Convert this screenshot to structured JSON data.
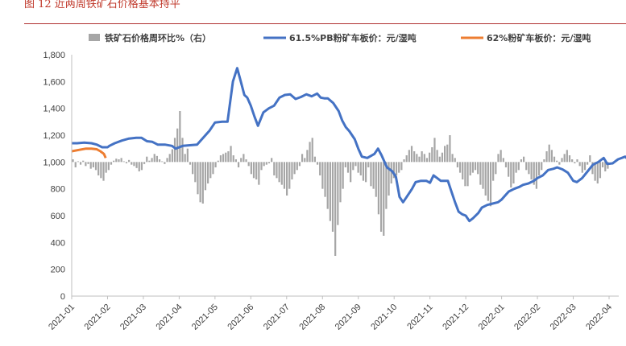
{
  "figure_title": "图 12 近两周铁矿石价格基本持平",
  "chart_data": {
    "type": "bar+line",
    "xlabels": [
      "2021-01",
      "2021-02",
      "2021-03",
      "2021-04",
      "2021-05",
      "2021-06",
      "2021-07",
      "2021-08",
      "2021-09",
      "2021-10",
      "2021-11",
      "2021-12",
      "2022-01",
      "2022-02",
      "2022-03",
      "2022-04"
    ],
    "ylim": [
      0,
      1800
    ],
    "yticks": [
      0,
      200,
      400,
      600,
      800,
      1000,
      1200,
      1400,
      1600,
      1800
    ],
    "y2_baseline_value": 1000,
    "legend": [
      {
        "key": "bars",
        "label": "铁矿石价格周环比%（右）",
        "color": "#a6a6a6",
        "kind": "bar"
      },
      {
        "key": "pb",
        "label": "61.5%PB粉矿车板价：元/湿吨",
        "color": "#4472c4",
        "kind": "line"
      },
      {
        "key": "f62",
        "label": "62%粉矿车板价：元/湿吨",
        "color": "#ed7d31",
        "kind": "line"
      }
    ],
    "series": [
      {
        "name": "61.5%PB粉矿车板价：元/湿吨",
        "color": "#4472c4",
        "points": [
          [
            0,
            1140
          ],
          [
            0.15,
            1140
          ],
          [
            0.35,
            1145
          ],
          [
            0.55,
            1140
          ],
          [
            0.7,
            1130
          ],
          [
            0.85,
            1110
          ],
          [
            1.0,
            1110
          ],
          [
            1.05,
            1120
          ],
          [
            1.2,
            1140
          ],
          [
            1.4,
            1160
          ],
          [
            1.6,
            1175
          ],
          [
            1.8,
            1180
          ],
          [
            1.95,
            1180
          ],
          [
            2.1,
            1155
          ],
          [
            2.25,
            1150
          ],
          [
            2.4,
            1130
          ],
          [
            2.6,
            1130
          ],
          [
            2.8,
            1120
          ],
          [
            2.9,
            1100
          ],
          [
            3.1,
            1120
          ],
          [
            3.3,
            1125
          ],
          [
            3.5,
            1130
          ],
          [
            3.7,
            1190
          ],
          [
            3.85,
            1235
          ],
          [
            4.0,
            1295
          ],
          [
            4.2,
            1300
          ],
          [
            4.35,
            1300
          ],
          [
            4.5,
            1600
          ],
          [
            4.62,
            1700
          ],
          [
            4.72,
            1600
          ],
          [
            4.82,
            1500
          ],
          [
            4.9,
            1480
          ],
          [
            5.0,
            1420
          ],
          [
            5.1,
            1340
          ],
          [
            5.2,
            1270
          ],
          [
            5.35,
            1370
          ],
          [
            5.5,
            1400
          ],
          [
            5.65,
            1420
          ],
          [
            5.8,
            1480
          ],
          [
            5.95,
            1500
          ],
          [
            6.1,
            1505
          ],
          [
            6.25,
            1470
          ],
          [
            6.4,
            1485
          ],
          [
            6.55,
            1505
          ],
          [
            6.7,
            1490
          ],
          [
            6.85,
            1510
          ],
          [
            6.95,
            1480
          ],
          [
            7.05,
            1475
          ],
          [
            7.15,
            1475
          ],
          [
            7.3,
            1440
          ],
          [
            7.45,
            1380
          ],
          [
            7.55,
            1310
          ],
          [
            7.65,
            1260
          ],
          [
            7.75,
            1230
          ],
          [
            7.9,
            1170
          ],
          [
            8.0,
            1100
          ],
          [
            8.1,
            1040
          ],
          [
            8.25,
            1030
          ],
          [
            8.45,
            1060
          ],
          [
            8.55,
            1100
          ],
          [
            8.65,
            1050
          ],
          [
            8.8,
            960
          ],
          [
            8.95,
            930
          ],
          [
            9.05,
            890
          ],
          [
            9.15,
            740
          ],
          [
            9.25,
            700
          ],
          [
            9.35,
            740
          ],
          [
            9.5,
            800
          ],
          [
            9.6,
            850
          ],
          [
            9.75,
            860
          ],
          [
            9.9,
            860
          ],
          [
            10.0,
            845
          ],
          [
            10.1,
            900
          ],
          [
            10.2,
            880
          ],
          [
            10.3,
            860
          ],
          [
            10.4,
            860
          ],
          [
            10.5,
            860
          ],
          [
            10.6,
            780
          ],
          [
            10.7,
            700
          ],
          [
            10.8,
            630
          ],
          [
            10.9,
            610
          ],
          [
            11.0,
            600
          ],
          [
            11.1,
            560
          ],
          [
            11.2,
            580
          ],
          [
            11.35,
            620
          ],
          [
            11.45,
            660
          ],
          [
            11.6,
            680
          ],
          [
            11.75,
            690
          ],
          [
            11.9,
            700
          ],
          [
            12.0,
            720
          ],
          [
            12.1,
            750
          ],
          [
            12.2,
            780
          ],
          [
            12.35,
            800
          ],
          [
            12.5,
            815
          ],
          [
            12.6,
            830
          ],
          [
            12.75,
            840
          ],
          [
            12.9,
            860
          ],
          [
            13.0,
            880
          ],
          [
            13.15,
            900
          ],
          [
            13.3,
            940
          ],
          [
            13.45,
            950
          ],
          [
            13.55,
            960
          ],
          [
            13.7,
            945
          ],
          [
            13.85,
            920
          ],
          [
            14.0,
            860
          ],
          [
            14.1,
            850
          ],
          [
            14.25,
            880
          ],
          [
            14.4,
            930
          ],
          [
            14.55,
            980
          ],
          [
            14.7,
            1000
          ],
          [
            14.85,
            1030
          ],
          [
            14.95,
            985
          ],
          [
            15.1,
            990
          ],
          [
            15.25,
            1020
          ],
          [
            15.45,
            1040
          ],
          [
            15.6,
            1000
          ],
          [
            15.75,
            990
          ],
          [
            15.85,
            1000
          ]
        ]
      },
      {
        "name": "62%粉矿车板价：元/湿吨",
        "color": "#ed7d31",
        "points": [
          [
            0,
            1080
          ],
          [
            0.2,
            1090
          ],
          [
            0.4,
            1100
          ],
          [
            0.55,
            1100
          ],
          [
            0.7,
            1095
          ],
          [
            0.8,
            1080
          ],
          [
            0.9,
            1060
          ],
          [
            0.95,
            1030
          ]
        ]
      }
    ],
    "bars_note": "weekly % change on right axis, rendered as deviations around the 1,000 line",
    "bars": [
      20,
      -40,
      5,
      -20,
      10,
      -30,
      -15,
      -50,
      -40,
      -60,
      -100,
      -120,
      -140,
      -80,
      -60,
      -20,
      10,
      25,
      20,
      30,
      5,
      -10,
      15,
      -20,
      -30,
      -45,
      -70,
      -60,
      -15,
      40,
      10,
      30,
      60,
      45,
      20,
      5,
      -15,
      30,
      60,
      95,
      180,
      250,
      380,
      180,
      60,
      100,
      -20,
      -90,
      -150,
      -240,
      -300,
      -310,
      -210,
      -160,
      -120,
      -90,
      -40,
      10,
      50,
      60,
      70,
      80,
      120,
      50,
      20,
      -40,
      30,
      60,
      20,
      -30,
      -90,
      -120,
      -130,
      -170,
      -60,
      -30,
      -20,
      -10,
      30,
      -100,
      -120,
      -150,
      -170,
      -200,
      -250,
      -200,
      -130,
      -90,
      -60,
      -30,
      60,
      30,
      90,
      150,
      180,
      40,
      -20,
      -100,
      -200,
      -260,
      -350,
      -440,
      -520,
      -700,
      -470,
      -300,
      -200,
      -40,
      -80,
      -150,
      -60,
      -30,
      -80,
      -100,
      -140,
      -150,
      -40,
      -180,
      -200,
      -260,
      -390,
      -520,
      -550,
      -350,
      -250,
      -160,
      -120,
      -100,
      -80,
      -60,
      20,
      50,
      90,
      120,
      80,
      60,
      40,
      80,
      60,
      30,
      70,
      110,
      180,
      90,
      40,
      70,
      120,
      130,
      200,
      60,
      30,
      -40,
      -80,
      -130,
      -180,
      -180,
      -100,
      -80,
      -60,
      -90,
      -170,
      -200,
      -250,
      -290,
      -330,
      -140,
      -90,
      60,
      90,
      30,
      -40,
      -110,
      -190,
      -160,
      -80,
      -60,
      20,
      40,
      -60,
      -90,
      -130,
      -170,
      -200,
      -100,
      -60,
      20,
      80,
      130,
      90,
      40,
      10,
      -20,
      30,
      60,
      90,
      50,
      20,
      -10,
      20,
      -30,
      -80,
      -60,
      -20,
      50,
      -90,
      -140,
      -160,
      -120,
      -40,
      -70,
      -50
    ]
  }
}
